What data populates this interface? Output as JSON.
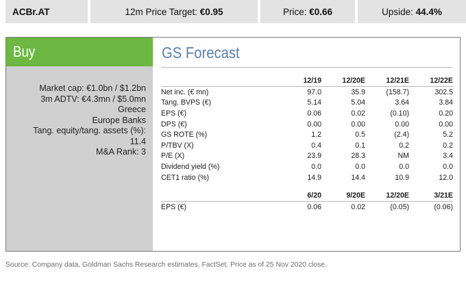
{
  "header": {
    "ticker": "ACBr.AT",
    "target_label": "12m Price Target: ",
    "target_value": "€0.95",
    "price_label": "Price: ",
    "price_value": "€0.66",
    "upside_label": "Upside: ",
    "upside_value": "44.4%"
  },
  "rating": "Buy",
  "info_lines": [
    "Market cap: €1.0bn / $1.2bn",
    "3m ADTV: €4.3mn / $5.0mn",
    "Greece",
    "Europe Banks",
    "Tang. equity/tang. assets (%):",
    "11.4",
    "M&A Rank: 3"
  ],
  "forecast": {
    "title": "GS Forecast",
    "annual_headers": [
      "12/19",
      "12/20E",
      "12/21E",
      "12/22E"
    ],
    "annual_rows": [
      {
        "label": "Net inc. (€ mn)",
        "values": [
          "97.0",
          "35.9",
          "(158.7)",
          "302.5"
        ]
      },
      {
        "label": "Tang. BVPS (€)",
        "values": [
          "5.14",
          "5.04",
          "3.64",
          "3.84"
        ]
      },
      {
        "label": "EPS (€)",
        "values": [
          "0.06",
          "0.02",
          "(0.10)",
          "0.20"
        ]
      },
      {
        "label": "DPS (€)",
        "values": [
          "0.00",
          "0.00",
          "0.00",
          "0.00"
        ]
      },
      {
        "label": "GS ROTE (%)",
        "values": [
          "1.2",
          "0.5",
          "(2.4)",
          "5.2"
        ]
      },
      {
        "label": "P/TBV (X)",
        "values": [
          "0.4",
          "0.1",
          "0.2",
          "0.2"
        ]
      },
      {
        "label": "P/E (X)",
        "values": [
          "23.9",
          "28.3",
          "NM",
          "3.4"
        ]
      },
      {
        "label": "Dividend yield (%)",
        "values": [
          "0.0",
          "0.0",
          "0.0",
          "0.0"
        ]
      },
      {
        "label": "CET1 ratio (%)",
        "values": [
          "14.9",
          "14.4",
          "10.9",
          "12.0"
        ]
      }
    ],
    "quarterly_headers": [
      "6/20",
      "9/20E",
      "12/20E",
      "3/21E"
    ],
    "quarterly_rows": [
      {
        "label": "EPS (€)",
        "values": [
          "0.06",
          "0.02",
          "(0.05)",
          "(0.06)"
        ]
      }
    ]
  },
  "footer": "Source: Company data, Goldman Sachs Research estimates, FactSet. Price as of 25 Nov 2020 close.",
  "colors": {
    "buy_green": "#6cb843",
    "title_blue": "#5b7db0",
    "panel_grey": "#d0d0d0",
    "header_grey": "#e3e3e3"
  }
}
